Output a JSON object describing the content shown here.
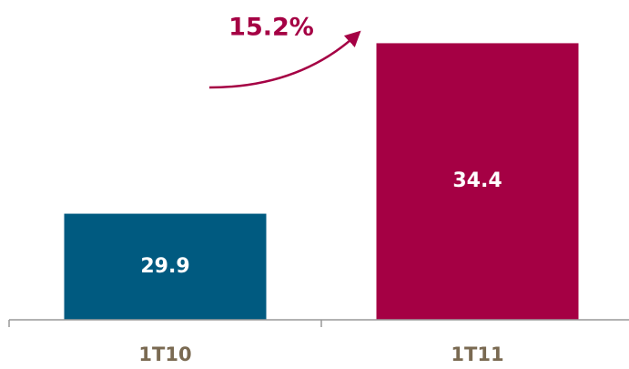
{
  "chart_data": {
    "type": "bar",
    "categories": [
      "1T10",
      "1T11"
    ],
    "values": [
      29.9,
      34.4
    ],
    "colors": [
      "#005a80",
      "#a50044"
    ],
    "ylim": [
      27.1,
      35.3
    ],
    "annotation": "15.2%"
  }
}
